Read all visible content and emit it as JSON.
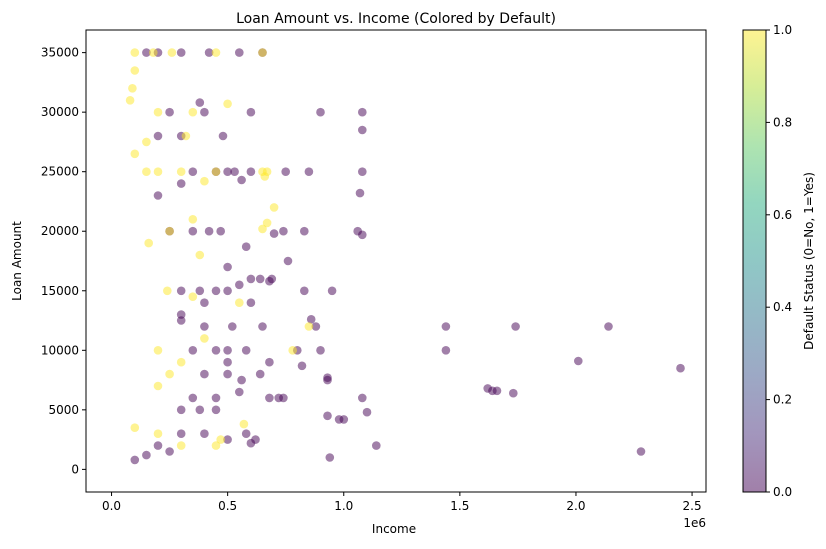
{
  "colors": {
    "default_no": "#440154",
    "default_yes": "#fde725",
    "axis": "#000000",
    "background": "#ffffff"
  },
  "chart_data": {
    "type": "scatter",
    "title": "Loan Amount vs. Income (Colored by Default)",
    "xlabel": "Income",
    "ylabel": "Loan Amount",
    "x_offset_label": "1e6",
    "xlim": [
      -110000,
      2560000
    ],
    "ylim": [
      -1900,
      36900
    ],
    "x_ticks": [
      0,
      500000,
      1000000,
      1500000,
      2000000,
      2500000
    ],
    "x_tick_labels": [
      "0.0",
      "0.5",
      "1.0",
      "1.5",
      "2.0",
      "2.5"
    ],
    "y_ticks": [
      0,
      5000,
      10000,
      15000,
      20000,
      25000,
      30000,
      35000
    ],
    "y_tick_labels": [
      "0",
      "5000",
      "10000",
      "15000",
      "20000",
      "25000",
      "30000",
      "35000"
    ],
    "grid": false,
    "marker_alpha": 0.5,
    "colorbar": {
      "label": "Default Status (0=No, 1=Yes)",
      "colormap": "viridis",
      "range": [
        0,
        1
      ],
      "ticks": [
        0.0,
        0.2,
        0.4,
        0.6,
        0.8,
        1.0
      ],
      "tick_labels": [
        "0.0",
        "0.2",
        "0.4",
        "0.6",
        "0.8",
        "1.0"
      ]
    },
    "series": [
      {
        "default": 0,
        "points": [
          [
            650000,
            35000
          ],
          [
            550000,
            35000
          ],
          [
            420000,
            35000
          ],
          [
            300000,
            35000
          ],
          [
            200000,
            35000
          ],
          [
            150000,
            35000
          ],
          [
            1080000,
            30000
          ],
          [
            900000,
            30000
          ],
          [
            600000,
            30000
          ],
          [
            400000,
            30000
          ],
          [
            250000,
            30000
          ],
          [
            1080000,
            28500
          ],
          [
            480000,
            28000
          ],
          [
            300000,
            28000
          ],
          [
            200000,
            28000
          ],
          [
            380000,
            30800
          ],
          [
            1080000,
            25000
          ],
          [
            850000,
            25000
          ],
          [
            750000,
            25000
          ],
          [
            600000,
            25000
          ],
          [
            530000,
            25000
          ],
          [
            500000,
            25000
          ],
          [
            450000,
            25000
          ],
          [
            350000,
            25000
          ],
          [
            1070000,
            23200
          ],
          [
            560000,
            24300
          ],
          [
            300000,
            24000
          ],
          [
            200000,
            23000
          ],
          [
            1060000,
            20000
          ],
          [
            1080000,
            19700
          ],
          [
            830000,
            20000
          ],
          [
            740000,
            20000
          ],
          [
            700000,
            19800
          ],
          [
            580000,
            18700
          ],
          [
            470000,
            20000
          ],
          [
            420000,
            20000
          ],
          [
            350000,
            20000
          ],
          [
            250000,
            20000
          ],
          [
            760000,
            17500
          ],
          [
            600000,
            16000
          ],
          [
            640000,
            16000
          ],
          [
            690000,
            16000
          ],
          [
            680000,
            15800
          ],
          [
            500000,
            17000
          ],
          [
            950000,
            15000
          ],
          [
            830000,
            15000
          ],
          [
            550000,
            15500
          ],
          [
            500000,
            15000
          ],
          [
            450000,
            15000
          ],
          [
            380000,
            15000
          ],
          [
            300000,
            15000
          ],
          [
            600000,
            14000
          ],
          [
            400000,
            14000
          ],
          [
            300000,
            13000
          ],
          [
            860000,
            12600
          ],
          [
            880000,
            12000
          ],
          [
            650000,
            12000
          ],
          [
            520000,
            12000
          ],
          [
            400000,
            12000
          ],
          [
            300000,
            12500
          ],
          [
            1440000,
            12000
          ],
          [
            1740000,
            12000
          ],
          [
            2140000,
            12000
          ],
          [
            1440000,
            10000
          ],
          [
            900000,
            10000
          ],
          [
            800000,
            10000
          ],
          [
            580000,
            10000
          ],
          [
            500000,
            10000
          ],
          [
            450000,
            10000
          ],
          [
            350000,
            10000
          ],
          [
            2010000,
            9100
          ],
          [
            2450000,
            8500
          ],
          [
            820000,
            8700
          ],
          [
            680000,
            9000
          ],
          [
            500000,
            9000
          ],
          [
            1620000,
            6800
          ],
          [
            1640000,
            6600
          ],
          [
            1660000,
            6600
          ],
          [
            1730000,
            6400
          ],
          [
            930000,
            7700
          ],
          [
            930000,
            7500
          ],
          [
            640000,
            8000
          ],
          [
            560000,
            7500
          ],
          [
            500000,
            8000
          ],
          [
            400000,
            8000
          ],
          [
            740000,
            6000
          ],
          [
            720000,
            6000
          ],
          [
            680000,
            6000
          ],
          [
            550000,
            6500
          ],
          [
            450000,
            6000
          ],
          [
            350000,
            6000
          ],
          [
            1080000,
            6000
          ],
          [
            1100000,
            4800
          ],
          [
            930000,
            4500
          ],
          [
            1000000,
            4200
          ],
          [
            980000,
            4200
          ],
          [
            450000,
            5000
          ],
          [
            380000,
            5000
          ],
          [
            300000,
            5000
          ],
          [
            580000,
            3000
          ],
          [
            600000,
            2200
          ],
          [
            620000,
            2500
          ],
          [
            500000,
            2500
          ],
          [
            400000,
            3000
          ],
          [
            300000,
            3000
          ],
          [
            1140000,
            2000
          ],
          [
            2280000,
            1500
          ],
          [
            940000,
            1000
          ],
          [
            250000,
            1500
          ],
          [
            200000,
            2000
          ],
          [
            150000,
            1200
          ],
          [
            100000,
            800
          ]
        ]
      },
      {
        "default": 1,
        "points": [
          [
            650000,
            35000
          ],
          [
            450000,
            35000
          ],
          [
            260000,
            35000
          ],
          [
            180000,
            35000
          ],
          [
            100000,
            35000
          ],
          [
            100000,
            33500
          ],
          [
            90000,
            32000
          ],
          [
            80000,
            31000
          ],
          [
            500000,
            30700
          ],
          [
            350000,
            30000
          ],
          [
            200000,
            30000
          ],
          [
            320000,
            28000
          ],
          [
            150000,
            27500
          ],
          [
            100000,
            26500
          ],
          [
            650000,
            25000
          ],
          [
            450000,
            25000
          ],
          [
            300000,
            25000
          ],
          [
            200000,
            25000
          ],
          [
            150000,
            25000
          ],
          [
            670000,
            25000
          ],
          [
            660000,
            24600
          ],
          [
            400000,
            24200
          ],
          [
            700000,
            22000
          ],
          [
            670000,
            20700
          ],
          [
            650000,
            20200
          ],
          [
            350000,
            21000
          ],
          [
            250000,
            20000
          ],
          [
            160000,
            19000
          ],
          [
            380000,
            18000
          ],
          [
            550000,
            14000
          ],
          [
            350000,
            14500
          ],
          [
            240000,
            15000
          ],
          [
            850000,
            12000
          ],
          [
            780000,
            10000
          ],
          [
            400000,
            11000
          ],
          [
            200000,
            10000
          ],
          [
            300000,
            9000
          ],
          [
            250000,
            8000
          ],
          [
            200000,
            7000
          ],
          [
            570000,
            3800
          ],
          [
            470000,
            2500
          ],
          [
            450000,
            2000
          ],
          [
            300000,
            2000
          ],
          [
            200000,
            3000
          ],
          [
            100000,
            3500
          ]
        ]
      }
    ]
  }
}
